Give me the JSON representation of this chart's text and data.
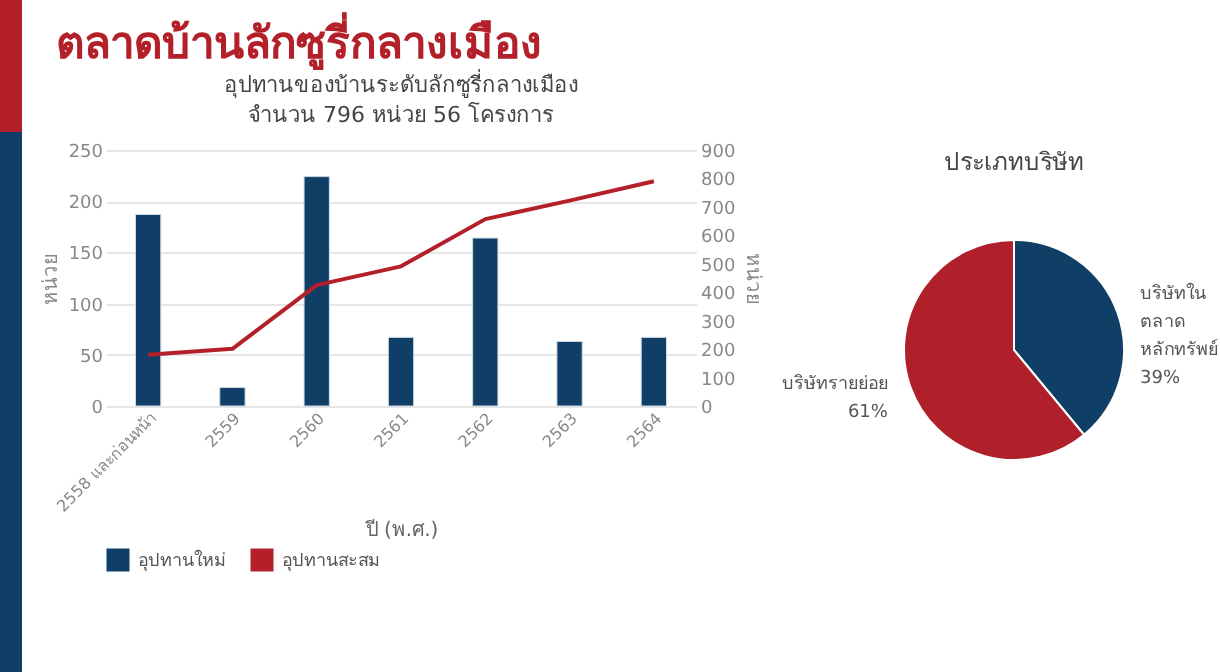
{
  "chart_data": [
    {
      "type": "bar",
      "title": "อุปทานของบ้านระดับลักซูรี่กลางเมือง",
      "subtitle": "จำนวน 796 หน่วย 56 โครงการ",
      "annotations": [
        "ตลาดบ้านลักซูรี่กลางเมือง"
      ],
      "xlabel": "ปี (พ.ศ.)",
      "ylabel": "หน่วย",
      "y2label": "หน่วย",
      "categories": [
        "2558 และก่อนหน้า",
        "2559",
        "2560",
        "2561",
        "2562",
        "2563",
        "2564"
      ],
      "series": [
        {
          "name": "อุปทานใหม่",
          "type": "bar",
          "color": "#0f3e66",
          "values": [
            187,
            18,
            224,
            67,
            164,
            63,
            67
          ]
        },
        {
          "name": "อุปทานสะสม",
          "type": "line",
          "axis": "y2",
          "color": "#b3202a",
          "values": [
            180,
            201,
            425,
            491,
            657,
            722,
            790
          ]
        }
      ],
      "ylim": [
        0,
        250
      ],
      "yticks": [
        0,
        50,
        100,
        150,
        200,
        250
      ],
      "y2lim": [
        0,
        900
      ],
      "y2ticks": [
        0,
        100,
        200,
        300,
        400,
        500,
        600,
        700,
        800,
        900
      ],
      "grid": "y",
      "legend": "bottom"
    },
    {
      "type": "pie",
      "title": "ประเภทบริษัท",
      "categories": [
        "บริษัทใน ตลาด หลักทรัพย์",
        "บริษัทรายย่อย"
      ],
      "values": [
        39,
        61
      ],
      "value_labels": [
        "39%",
        "61%"
      ],
      "colors": [
        "#0f3e66",
        "#b0202b"
      ],
      "legend": false
    }
  ]
}
